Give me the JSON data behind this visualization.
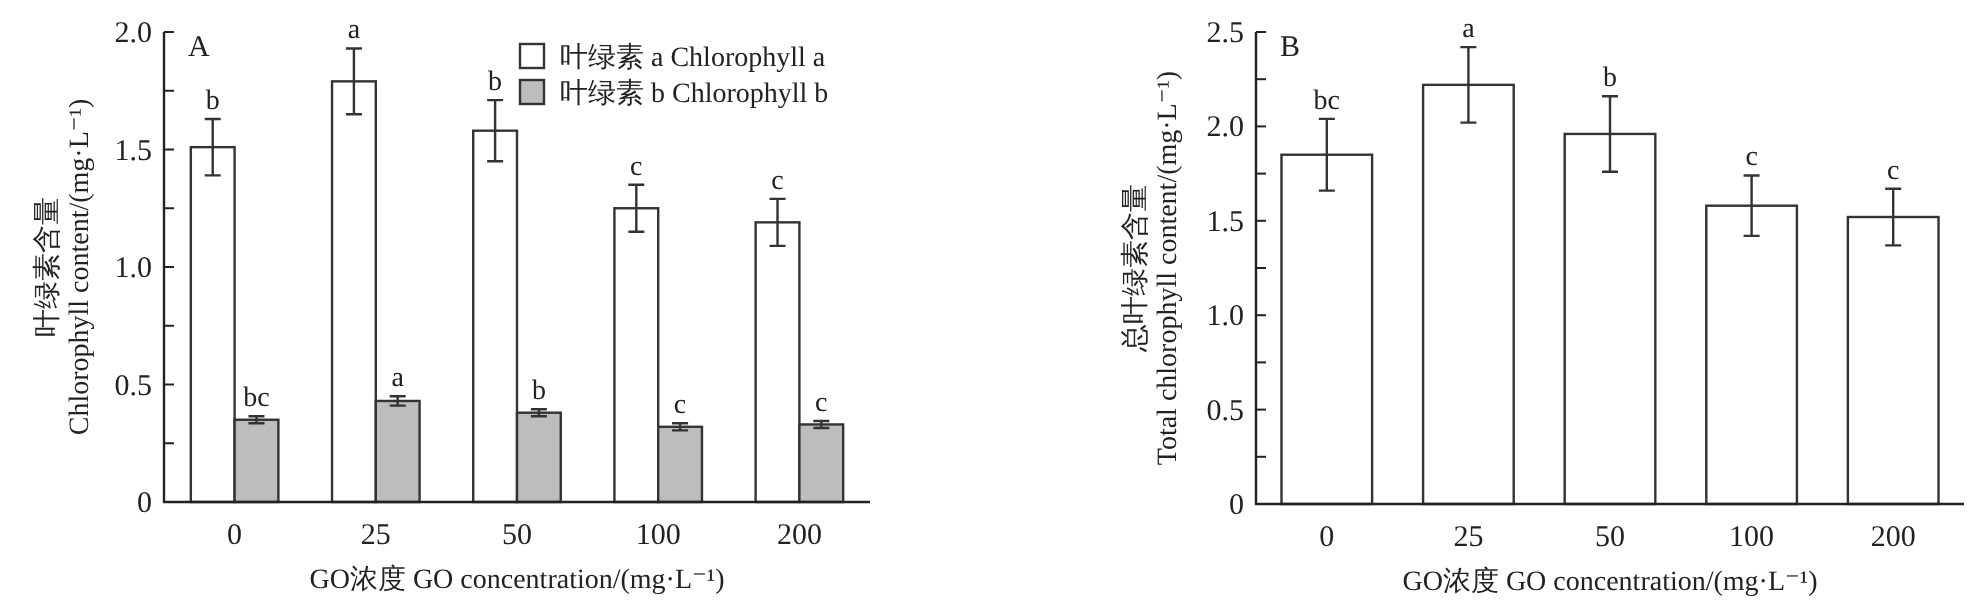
{
  "chart_data": [
    {
      "type": "bar",
      "title": "A",
      "categories": [
        "0",
        "25",
        "50",
        "100",
        "200"
      ],
      "series": [
        {
          "name": "叶绿素 a Chlorophyll a",
          "color": "#ffffff",
          "values": [
            1.51,
            1.79,
            1.58,
            1.25,
            1.19
          ],
          "errors": [
            0.12,
            0.14,
            0.13,
            0.1,
            0.1
          ]
        },
        {
          "name": "叶绿素 b Chlorophyll b",
          "color": "#bdbdbd",
          "values": [
            0.35,
            0.43,
            0.38,
            0.32,
            0.33
          ],
          "errors": [
            0.015,
            0.02,
            0.015,
            0.015,
            0.015
          ]
        }
      ],
      "ylim": [
        0,
        2
      ],
      "yticks": [
        0,
        {
          "value": 0.25,
          "label": null
        },
        0.5,
        {
          "value": 0.75,
          "label": null
        },
        {
          "value": 1,
          "label": "1.0"
        },
        {
          "value": 1.25,
          "label": null
        },
        1.5,
        {
          "value": 1.75,
          "label": null
        },
        {
          "value": 2,
          "label": "2.0"
        }
      ],
      "xlabel": "GO浓度 GO concentration/(mg·L⁻¹)",
      "ylabel": "叶绿素含量\nChlorophyll content/(mg·L⁻¹)",
      "legend": "top right",
      "annotations": [
        {
          "text": "b",
          "x": "0",
          "y": 1.51
        },
        {
          "text": "a",
          "x": "25",
          "y": 1.79
        },
        {
          "text": "b",
          "x": "50",
          "y": 1.58
        },
        {
          "text": "c",
          "x": "100",
          "y": 1.25
        },
        {
          "text": "c",
          "x": "200",
          "y": 1.19
        },
        {
          "text": "bc",
          "x": "0",
          "y": 0.35
        },
        {
          "text": "a",
          "x": "25",
          "y": 0.43
        },
        {
          "text": "b",
          "x": "50",
          "y": 0.38
        },
        {
          "text": "c",
          "x": "100",
          "y": 0.32
        },
        {
          "text": "c",
          "x": "200",
          "y": 0.33
        }
      ]
    },
    {
      "type": "bar",
      "title": "B",
      "categories": [
        "0",
        "25",
        "50",
        "100",
        "200"
      ],
      "series": [
        {
          "color": "#ffffff",
          "values": [
            1.85,
            2.22,
            1.96,
            1.58,
            1.52
          ],
          "errors": [
            0.19,
            0.2,
            0.2,
            0.16,
            0.15
          ]
        }
      ],
      "ylim": [
        0,
        2.5
      ],
      "yticks": [
        0,
        {
          "value": 0.25,
          "label": null
        },
        0.5,
        {
          "value": 0.75,
          "label": null
        },
        {
          "value": 1,
          "label": "1.0"
        },
        {
          "value": 1.25,
          "label": null
        },
        1.5,
        {
          "value": 1.75,
          "label": null
        },
        {
          "value": 2,
          "label": "2.0"
        },
        {
          "value": 2.25,
          "label": null
        },
        2.5
      ],
      "xlabel": "GO浓度 GO concentration/(mg·L⁻¹)",
      "ylabel": "总叶绿素含量\nTotal chlorophyll content/(mg·L⁻¹)",
      "annotations": [
        {
          "text": "bc",
          "x": "0",
          "y": 1.85
        },
        {
          "text": "a",
          "x": "25",
          "y": 2.22
        },
        {
          "text": "b",
          "x": "50",
          "y": 1.96
        },
        {
          "text": "c",
          "x": "100",
          "y": 1.58
        },
        {
          "text": "c",
          "x": "200",
          "y": 1.52
        }
      ]
    }
  ]
}
